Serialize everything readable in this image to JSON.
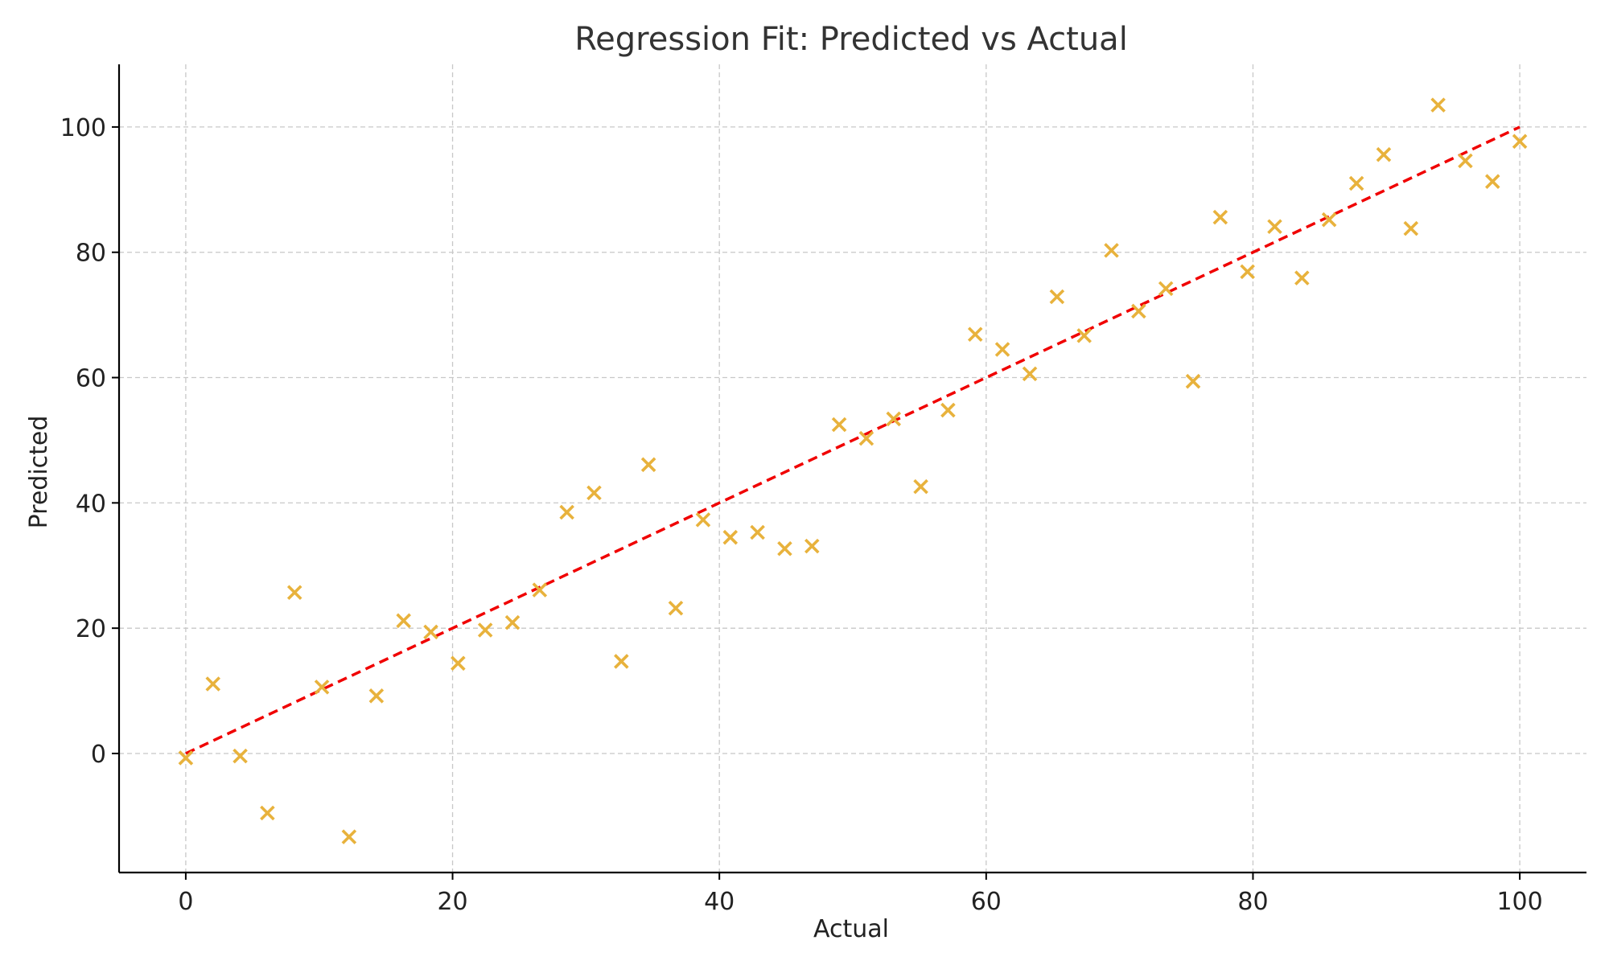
{
  "chart_data": {
    "type": "scatter",
    "title": "Regression Fit: Predicted vs Actual",
    "xlabel": "Actual",
    "ylabel": "Predicted",
    "xlim": [
      -5,
      105
    ],
    "ylim": [
      -19,
      110
    ],
    "xticks": [
      0,
      20,
      40,
      60,
      80,
      100
    ],
    "yticks": [
      0,
      20,
      40,
      60,
      80,
      100
    ],
    "grid": true,
    "colors": {
      "points": "#e8b23c",
      "fit_line": "#f00000",
      "grid": "#c8c8c8",
      "axes": "#000000"
    },
    "fit_line": {
      "style": "dashed",
      "x": [
        0,
        100
      ],
      "y": [
        0,
        100
      ]
    },
    "series": [
      {
        "marker": "x",
        "x": [
          0,
          2.04,
          4.08,
          6.12,
          8.16,
          10.2,
          12.24,
          14.29,
          16.33,
          18.37,
          20.41,
          22.45,
          24.49,
          26.53,
          28.57,
          30.61,
          32.65,
          34.69,
          36.73,
          38.78,
          40.82,
          42.86,
          44.9,
          46.94,
          48.98,
          51.02,
          53.06,
          55.1,
          57.14,
          59.18,
          61.22,
          63.27,
          65.31,
          67.35,
          69.39,
          71.43,
          73.47,
          75.51,
          77.55,
          79.59,
          81.63,
          83.67,
          85.71,
          87.76,
          89.8,
          91.84,
          93.88,
          95.92,
          97.96,
          100
        ],
        "y": [
          -0.7,
          11.1,
          -0.4,
          -9.5,
          25.7,
          10.6,
          -13.3,
          9.2,
          21.2,
          19.4,
          14.4,
          19.7,
          20.9,
          26.1,
          38.5,
          41.6,
          14.7,
          46.1,
          23.2,
          37.3,
          34.5,
          35.3,
          32.7,
          33.1,
          52.5,
          50.3,
          53.4,
          42.6,
          54.8,
          66.9,
          64.5,
          60.6,
          72.9,
          66.7,
          80.3,
          70.6,
          74.2,
          59.4,
          85.6,
          76.9,
          84.1,
          75.9,
          85.2,
          91.0,
          95.6,
          83.8,
          103.5,
          94.6,
          91.3,
          97.7
        ]
      }
    ]
  }
}
